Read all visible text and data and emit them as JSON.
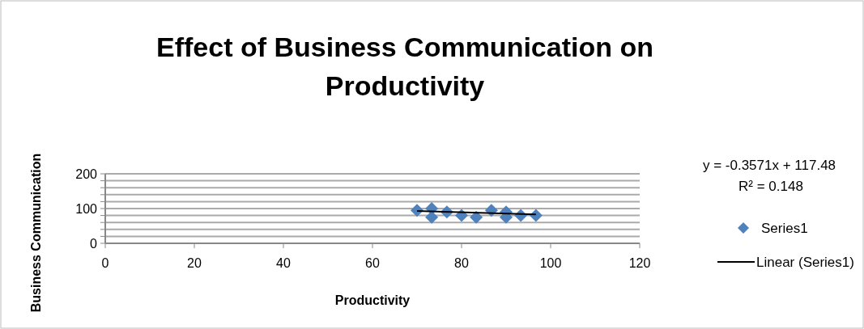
{
  "chart_data": {
    "type": "scatter",
    "title": "Effect of Business Communication on Productivity",
    "xlabel": "Productivity",
    "ylabel": "Business Communication",
    "xlim": [
      0,
      120
    ],
    "xticks": [
      0,
      20,
      40,
      60,
      80,
      100,
      120
    ],
    "ylim": [
      0,
      200
    ],
    "yticks": [
      0,
      {
        "value": 20,
        "label": null
      },
      {
        "value": 40,
        "label": null
      },
      {
        "value": 60,
        "label": null
      },
      {
        "value": 80,
        "label": null
      },
      100,
      {
        "value": 120,
        "label": null
      },
      {
        "value": 140,
        "label": null
      },
      {
        "value": 160,
        "label": null
      },
      {
        "value": 180,
        "label": null
      },
      200
    ],
    "grid": "y",
    "legend": "right",
    "annotations": [
      "y = -0.3571x + 117.48",
      "R² = 0.148"
    ],
    "series": [
      {
        "name": "Series1",
        "marker": "diamond",
        "color": "#4f81bd",
        "x": [
          70,
          73.3,
          73.3,
          76.7,
          80,
          83.3,
          86.7,
          90,
          90,
          93.3,
          96.7
        ],
        "values": [
          95,
          100,
          75,
          90,
          80,
          75,
          95,
          90,
          75,
          80,
          80
        ]
      },
      {
        "name": "Linear (Series1)",
        "type": "line",
        "color": "#000000",
        "x": [
          70,
          96.7
        ],
        "values": [
          93,
          83
        ]
      }
    ]
  }
}
